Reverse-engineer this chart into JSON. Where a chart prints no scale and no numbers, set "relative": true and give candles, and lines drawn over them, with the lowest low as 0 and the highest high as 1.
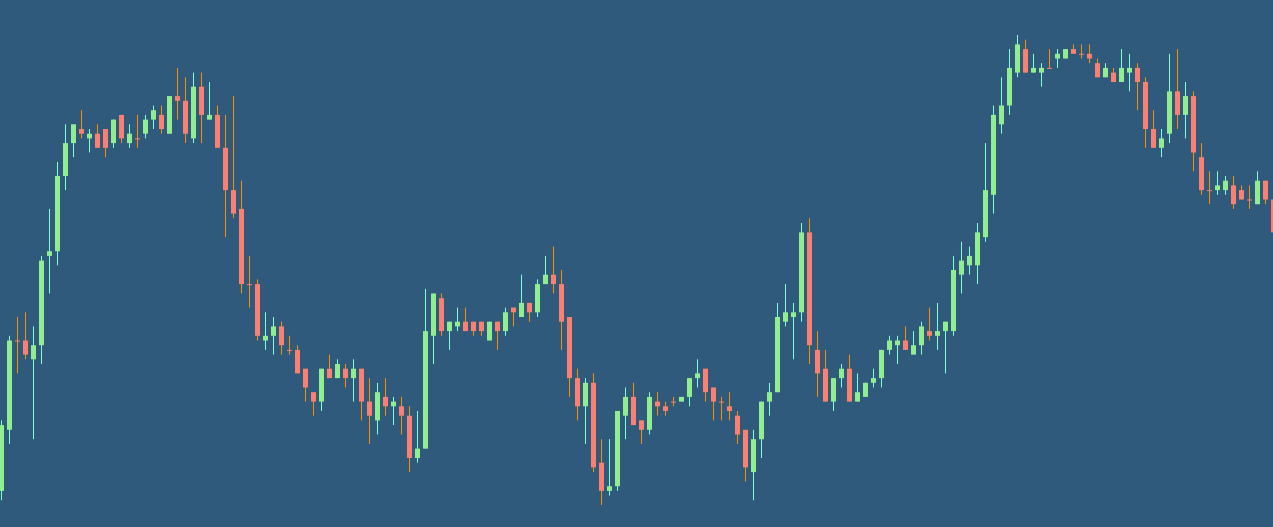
{
  "chart_data": {
    "type": "candlestick",
    "relative": true,
    "categories": [
      null,
      null,
      null,
      null,
      null,
      null,
      null,
      null,
      null,
      null,
      null,
      null,
      null,
      null,
      null,
      null,
      null,
      null,
      null,
      null,
      null,
      null,
      null,
      null,
      null,
      null,
      null,
      null,
      null,
      null,
      null,
      null,
      null,
      null,
      null,
      null,
      null,
      null,
      null,
      null,
      null,
      null,
      null,
      null,
      null,
      null,
      null,
      null,
      null,
      null,
      null,
      null,
      null,
      null,
      null,
      null,
      null,
      null,
      null,
      null,
      null,
      null,
      null,
      null,
      null,
      null,
      null,
      null,
      null,
      null,
      null,
      null,
      null,
      null,
      null,
      null,
      null,
      null,
      null,
      null,
      null,
      null,
      null,
      null,
      null,
      null,
      null,
      null,
      null,
      null,
      null,
      null,
      null,
      null,
      null,
      null,
      null,
      null,
      null,
      null,
      null,
      null,
      null,
      null,
      null,
      null,
      null,
      null,
      null,
      null,
      null,
      null,
      null,
      null,
      null,
      null,
      null,
      null,
      null,
      null,
      null,
      null,
      null,
      null,
      null,
      null,
      null,
      null,
      null,
      null,
      null,
      null,
      null,
      null,
      null,
      null,
      null,
      null,
      null,
      null,
      null,
      null,
      null,
      null,
      null,
      null,
      null,
      null,
      null,
      null,
      null,
      null,
      null,
      null,
      null,
      null,
      null,
      null,
      null,
      null
    ],
    "ohlc": [
      [
        0.03,
        0.18,
        0.01,
        0.17
      ],
      [
        0.16,
        0.36,
        0.13,
        0.35
      ],
      [
        0.35,
        0.4,
        0.28,
        0.35
      ],
      [
        0.35,
        0.41,
        0.31,
        0.32
      ],
      [
        0.31,
        0.38,
        0.14,
        0.34
      ],
      [
        0.34,
        0.53,
        0.3,
        0.52
      ],
      [
        0.53,
        0.63,
        0.45,
        0.54
      ],
      [
        0.54,
        0.73,
        0.51,
        0.7
      ],
      [
        0.7,
        0.81,
        0.67,
        0.77
      ],
      [
        0.77,
        0.81,
        0.74,
        0.81
      ],
      [
        0.8,
        0.84,
        0.78,
        0.79
      ],
      [
        0.78,
        0.8,
        0.75,
        0.79
      ],
      [
        0.79,
        0.81,
        0.76,
        0.76
      ],
      [
        0.8,
        0.8,
        0.74,
        0.76
      ],
      [
        0.77,
        0.82,
        0.76,
        0.82
      ],
      [
        0.83,
        0.83,
        0.77,
        0.78
      ],
      [
        0.77,
        0.81,
        0.76,
        0.79
      ],
      [
        0.78,
        0.83,
        0.76,
        0.78
      ],
      [
        0.79,
        0.83,
        0.78,
        0.82
      ],
      [
        0.82,
        0.85,
        0.8,
        0.84
      ],
      [
        0.83,
        0.85,
        0.79,
        0.8
      ],
      [
        0.79,
        0.87,
        0.79,
        0.87
      ],
      [
        0.87,
        0.93,
        0.82,
        0.86
      ],
      [
        0.86,
        0.91,
        0.77,
        0.79
      ],
      [
        0.78,
        0.92,
        0.77,
        0.89
      ],
      [
        0.89,
        0.92,
        0.77,
        0.83
      ],
      [
        0.82,
        0.9,
        0.82,
        0.83
      ],
      [
        0.83,
        0.85,
        0.76,
        0.76
      ],
      [
        0.76,
        0.83,
        0.57,
        0.67
      ],
      [
        0.67,
        0.87,
        0.61,
        0.62
      ],
      [
        0.63,
        0.69,
        0.45,
        0.47
      ],
      [
        0.47,
        0.53,
        0.42,
        0.47
      ],
      [
        0.47,
        0.48,
        0.35,
        0.36
      ],
      [
        0.35,
        0.41,
        0.33,
        0.36
      ],
      [
        0.36,
        0.4,
        0.32,
        0.38
      ],
      [
        0.38,
        0.39,
        0.32,
        0.34
      ],
      [
        0.33,
        0.36,
        0.32,
        0.33
      ],
      [
        0.33,
        0.34,
        0.28,
        0.28
      ],
      [
        0.29,
        0.29,
        0.22,
        0.25
      ],
      [
        0.24,
        0.24,
        0.19,
        0.22
      ],
      [
        0.22,
        0.29,
        0.2,
        0.29
      ],
      [
        0.29,
        0.32,
        0.27,
        0.27
      ],
      [
        0.27,
        0.31,
        0.27,
        0.3
      ],
      [
        0.29,
        0.3,
        0.25,
        0.27
      ],
      [
        0.27,
        0.31,
        0.22,
        0.29
      ],
      [
        0.29,
        0.29,
        0.18,
        0.22
      ],
      [
        0.22,
        0.27,
        0.13,
        0.19
      ],
      [
        0.18,
        0.26,
        0.15,
        0.24
      ],
      [
        0.23,
        0.27,
        0.19,
        0.21
      ],
      [
        0.21,
        0.23,
        0.17,
        0.22
      ],
      [
        0.21,
        0.23,
        0.15,
        0.19
      ],
      [
        0.19,
        0.21,
        0.07,
        0.1
      ],
      [
        0.1,
        0.2,
        0.09,
        0.12
      ],
      [
        0.12,
        0.46,
        0.12,
        0.37
      ],
      [
        0.36,
        0.45,
        0.3,
        0.45
      ],
      [
        0.44,
        0.45,
        0.36,
        0.37
      ],
      [
        0.37,
        0.39,
        0.33,
        0.39
      ],
      [
        0.38,
        0.42,
        0.37,
        0.39
      ],
      [
        0.39,
        0.42,
        0.37,
        0.37
      ],
      [
        0.39,
        0.39,
        0.36,
        0.37
      ],
      [
        0.39,
        0.39,
        0.36,
        0.37
      ],
      [
        0.35,
        0.39,
        0.35,
        0.39
      ],
      [
        0.39,
        0.39,
        0.33,
        0.37
      ],
      [
        0.37,
        0.42,
        0.36,
        0.41
      ],
      [
        0.42,
        0.42,
        0.38,
        0.41
      ],
      [
        0.4,
        0.49,
        0.4,
        0.43
      ],
      [
        0.43,
        0.43,
        0.39,
        0.41
      ],
      [
        0.41,
        0.48,
        0.4,
        0.47
      ],
      [
        0.47,
        0.53,
        0.47,
        0.49
      ],
      [
        0.49,
        0.55,
        0.45,
        0.47
      ],
      [
        0.47,
        0.5,
        0.33,
        0.39
      ],
      [
        0.4,
        0.4,
        0.23,
        0.27
      ],
      [
        0.27,
        0.29,
        0.18,
        0.21
      ],
      [
        0.21,
        0.27,
        0.13,
        0.26
      ],
      [
        0.26,
        0.28,
        0.07,
        0.08
      ],
      [
        0.09,
        0.14,
        0,
        0.03
      ],
      [
        0.03,
        0.14,
        0.02,
        0.04
      ],
      [
        0.04,
        0.2,
        0.03,
        0.2
      ],
      [
        0.19,
        0.25,
        0.14,
        0.23
      ],
      [
        0.23,
        0.26,
        0.17,
        0.17
      ],
      [
        0.18,
        0.18,
        0.13,
        0.16
      ],
      [
        0.16,
        0.24,
        0.15,
        0.23
      ],
      [
        0.22,
        0.24,
        0.19,
        0.21
      ],
      [
        0.21,
        0.22,
        0.19,
        0.2
      ],
      [
        0.22,
        0.23,
        0.21,
        0.22
      ],
      [
        0.22,
        0.23,
        0.22,
        0.23
      ],
      [
        0.23,
        0.27,
        0.21,
        0.27
      ],
      [
        0.27,
        0.31,
        0.25,
        0.28
      ],
      [
        0.29,
        0.29,
        0.22,
        0.24
      ],
      [
        0.25,
        0.25,
        0.18,
        0.22
      ],
      [
        0.22,
        0.23,
        0.18,
        0.22
      ],
      [
        0.21,
        0.24,
        0.18,
        0.2
      ],
      [
        0.19,
        0.2,
        0.13,
        0.15
      ],
      [
        0.16,
        0.16,
        0.05,
        0.08
      ],
      [
        0.07,
        0.16,
        0.01,
        0.14
      ],
      [
        0.14,
        0.22,
        0.1,
        0.22
      ],
      [
        0.22,
        0.26,
        0.19,
        0.24
      ],
      [
        0.24,
        0.43,
        0.24,
        0.4
      ],
      [
        0.39,
        0.47,
        0.38,
        0.41
      ],
      [
        0.4,
        0.43,
        0.31,
        0.41
      ],
      [
        0.41,
        0.6,
        0.39,
        0.58
      ],
      [
        0.58,
        0.61,
        0.3,
        0.34
      ],
      [
        0.33,
        0.37,
        0.23,
        0.28
      ],
      [
        0.29,
        0.33,
        0.22,
        0.22
      ],
      [
        0.22,
        0.27,
        0.2,
        0.27
      ],
      [
        0.27,
        0.3,
        0.25,
        0.29
      ],
      [
        0.29,
        0.32,
        0.22,
        0.22
      ],
      [
        0.22,
        0.28,
        0.22,
        0.24
      ],
      [
        0.23,
        0.26,
        0.23,
        0.26
      ],
      [
        0.26,
        0.29,
        0.25,
        0.27
      ],
      [
        0.27,
        0.33,
        0.25,
        0.33
      ],
      [
        0.33,
        0.36,
        0.32,
        0.35
      ],
      [
        0.34,
        0.36,
        0.3,
        0.35
      ],
      [
        0.35,
        0.38,
        0.33,
        0.33
      ],
      [
        0.32,
        0.37,
        0.32,
        0.34
      ],
      [
        0.34,
        0.39,
        0.32,
        0.38
      ],
      [
        0.37,
        0.42,
        0.35,
        0.36
      ],
      [
        0.36,
        0.43,
        0.33,
        0.37
      ],
      [
        0.37,
        0.39,
        0.28,
        0.39
      ],
      [
        0.37,
        0.53,
        0.36,
        0.5
      ],
      [
        0.49,
        0.56,
        0.45,
        0.52
      ],
      [
        0.51,
        0.55,
        0.49,
        0.53
      ],
      [
        0.51,
        0.6,
        0.47,
        0.58
      ],
      [
        0.57,
        0.77,
        0.56,
        0.67
      ],
      [
        0.66,
        0.85,
        0.62,
        0.83
      ],
      [
        0.81,
        0.91,
        0.79,
        0.85
      ],
      [
        0.85,
        0.97,
        0.83,
        0.93
      ],
      [
        0.92,
        1,
        0.91,
        0.98
      ],
      [
        0.97,
        0.99,
        0.92,
        0.92
      ],
      [
        0.92,
        0.96,
        0.92,
        0.93
      ],
      [
        0.92,
        0.94,
        0.89,
        0.93
      ],
      [
        0.93,
        0.97,
        0.93,
        0.93
      ],
      [
        0.95,
        0.97,
        0.93,
        0.96
      ],
      [
        0.95,
        0.97,
        0.95,
        0.97
      ],
      [
        0.97,
        0.98,
        0.96,
        0.96
      ],
      [
        0.96,
        0.98,
        0.95,
        0.96
      ],
      [
        0.96,
        0.98,
        0.94,
        0.95
      ],
      [
        0.94,
        0.95,
        0.91,
        0.91
      ],
      [
        0.91,
        0.94,
        0.91,
        0.93
      ],
      [
        0.92,
        0.93,
        0.9,
        0.9
      ],
      [
        0.9,
        0.97,
        0.9,
        0.93
      ],
      [
        0.92,
        0.96,
        0.88,
        0.93
      ],
      [
        0.93,
        0.94,
        0.84,
        0.9
      ],
      [
        0.9,
        0.91,
        0.76,
        0.8
      ],
      [
        0.8,
        0.84,
        0.76,
        0.76
      ],
      [
        0.76,
        0.8,
        0.74,
        0.78
      ],
      [
        0.79,
        0.96,
        0.77,
        0.88
      ],
      [
        0.88,
        0.97,
        0.8,
        0.83
      ],
      [
        0.83,
        0.9,
        0.78,
        0.87
      ],
      [
        0.87,
        0.88,
        0.71,
        0.75
      ],
      [
        0.74,
        0.77,
        0.66,
        0.67
      ],
      [
        0.67,
        0.71,
        0.64,
        0.67
      ],
      [
        0.67,
        0.71,
        0.66,
        0.68
      ],
      [
        0.67,
        0.7,
        0.66,
        0.69
      ],
      [
        0.68,
        0.7,
        0.63,
        0.64
      ],
      [
        0.67,
        0.68,
        0.65,
        0.65
      ],
      [
        0.65,
        0.68,
        0.63,
        0.65
      ],
      [
        0.64,
        0.71,
        0.64,
        0.69
      ],
      [
        0.69,
        0.69,
        0.64,
        0.65
      ],
      [
        0.65,
        0.65,
        0.58,
        0.58
      ]
    ]
  }
}
